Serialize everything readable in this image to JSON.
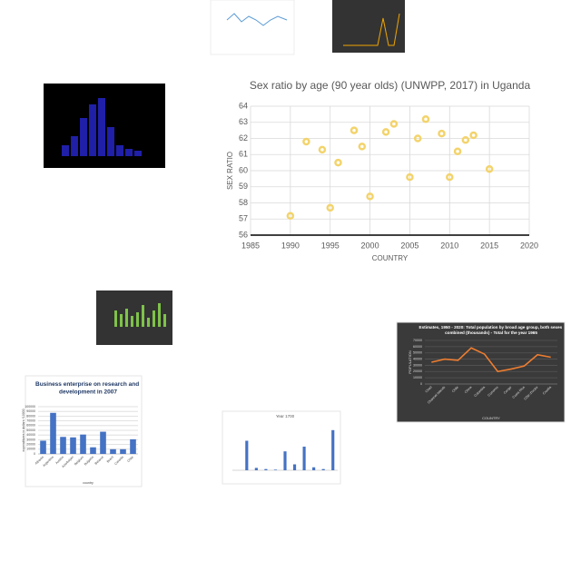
{
  "chart_data": [
    {
      "type": "scatter",
      "title": "Sex ratio by age (90 year olds) (UNWPP, 2017) in Uganda",
      "x_label": "COUNTRY",
      "y_label": "SEX RATIO",
      "color": "#f3d36b",
      "grid": true,
      "x": [
        1990,
        1992,
        1994,
        1995,
        1996,
        1998,
        1999,
        2000,
        2002,
        2003,
        2005,
        2006,
        2007,
        2009,
        2010,
        2011,
        2012,
        2013,
        2015
      ],
      "values": [
        57.2,
        61.8,
        61.3,
        57.7,
        60.5,
        62.5,
        61.5,
        58.4,
        62.4,
        62.9,
        59.6,
        62.0,
        63.2,
        62.3,
        59.6,
        61.2,
        61.9,
        62.2,
        60.1
      ],
      "xlim": [
        1985,
        2020
      ],
      "xticks": [
        1985,
        1990,
        1995,
        2000,
        2005,
        2010,
        2015,
        2020
      ],
      "ylim": [
        56,
        64
      ],
      "yticks": [
        56,
        57,
        58,
        59,
        60,
        61,
        62,
        63,
        64
      ]
    },
    {
      "type": "bar",
      "title": "Business enterprise on research and development in 2007",
      "x_label": "country",
      "y_label": "expenditures in dollars *10000",
      "color": "#4472c4",
      "grid": true,
      "categories": [
        "Albania",
        "Argentina",
        "Austria",
        "Azerbaijan",
        "Belgium",
        "Bulgaria",
        "Belarus",
        "Brazil",
        "Canada",
        "Chile"
      ],
      "values": [
        28000,
        87000,
        36000,
        35000,
        41000,
        14000,
        47000,
        10000,
        10000,
        31000
      ],
      "ylim": [
        0,
        100000
      ],
      "yticks": [
        0,
        10000,
        20000,
        30000,
        40000,
        50000,
        60000,
        70000,
        80000,
        90000,
        100000
      ]
    },
    {
      "type": "bar",
      "title": "Year 1700",
      "color": "#4472c4",
      "grid": false,
      "categories": [
        null,
        null,
        null,
        null,
        null,
        null,
        null,
        null,
        null,
        null,
        null
      ],
      "values": [
        0,
        50,
        4,
        2,
        1,
        32,
        10,
        40,
        5,
        2,
        68
      ],
      "ylim": [
        0,
        80
      ]
    },
    {
      "type": "line",
      "title": "Estimates, 1950 - 2020: Total population by broad age group, both sexes combined (thousands) - Total for the year 1965",
      "x_label": "COUNTRY",
      "y_label": "POPULATION",
      "color": "#ed7d31",
      "grid": true,
      "dark": true,
      "categories": [
        "Chad",
        "Channel Islands",
        "Chile",
        "China",
        "Colombia",
        "Comoros",
        "Congo",
        "Costa Rica",
        "Côte d'Ivoire",
        "Croatia"
      ],
      "values": [
        35000,
        40000,
        38000,
        58000,
        48000,
        20000,
        24000,
        29000,
        47000,
        43000
      ],
      "ylim": [
        0,
        70000
      ],
      "yticks": [
        0,
        10000,
        20000,
        30000,
        40000,
        50000,
        60000,
        70000
      ]
    }
  ]
}
